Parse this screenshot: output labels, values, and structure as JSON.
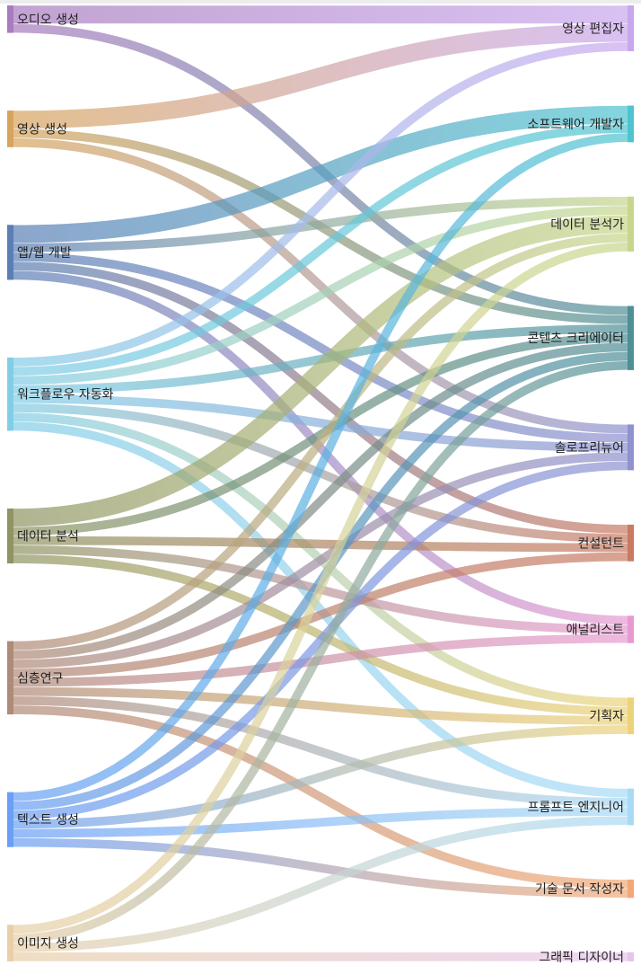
{
  "chart_data": {
    "type": "sankey",
    "sources": [
      {
        "name": "오디오 생성",
        "color": "#a87bbe"
      },
      {
        "name": "영상 생성",
        "color": "#d7a45d"
      },
      {
        "name": "앱/웹 개발",
        "color": "#5b7fb5"
      },
      {
        "name": "워크플로우 자동화",
        "color": "#82cde6"
      },
      {
        "name": "데이터 분석",
        "color": "#8f9462"
      },
      {
        "name": "심층연구",
        "color": "#b08a78"
      },
      {
        "name": "텍스트 생성",
        "color": "#6a9ff5"
      },
      {
        "name": "이미지 생성",
        "color": "#e8cfa8"
      }
    ],
    "targets": [
      {
        "name": "영상 편집자",
        "color": "#c9a7ee"
      },
      {
        "name": "소프트웨어 개발자",
        "color": "#4fc3cf"
      },
      {
        "name": "데이터 분석가",
        "color": "#c6d68c"
      },
      {
        "name": "콘텐츠 크리에이터",
        "color": "#4f8f96"
      },
      {
        "name": "솔로프리뉴어",
        "color": "#8e92cf"
      },
      {
        "name": "컨설턴트",
        "color": "#c97a62"
      },
      {
        "name": "애널리스트",
        "color": "#e79ad2"
      },
      {
        "name": "기획자",
        "color": "#ecd37a"
      },
      {
        "name": "프롬프트 엔지니어",
        "color": "#a9daf5"
      },
      {
        "name": "기술 문서 작성자",
        "color": "#f2a976"
      },
      {
        "name": "그래픽 디자이너",
        "color": "#e7c4ec"
      }
    ],
    "links": [
      {
        "source": "오디오 생성",
        "target": "영상 편집자",
        "value": 2
      },
      {
        "source": "오디오 생성",
        "target": "콘텐츠 크리에이터",
        "value": 1
      },
      {
        "source": "영상 생성",
        "target": "영상 편집자",
        "value": 2
      },
      {
        "source": "영상 생성",
        "target": "콘텐츠 크리에이터",
        "value": 1
      },
      {
        "source": "영상 생성",
        "target": "솔로프리뉴어",
        "value": 1
      },
      {
        "source": "앱/웹 개발",
        "target": "소프트웨어 개발자",
        "value": 2
      },
      {
        "source": "앱/웹 개발",
        "target": "데이터 분석가",
        "value": 1
      },
      {
        "source": "앱/웹 개발",
        "target": "솔로프리뉴어",
        "value": 1
      },
      {
        "source": "앱/웹 개발",
        "target": "컨설턴트",
        "value": 1
      },
      {
        "source": "앱/웹 개발",
        "target": "애널리스트",
        "value": 1
      },
      {
        "source": "워크플로우 자동화",
        "target": "영상 편집자",
        "value": 1
      },
      {
        "source": "워크플로우 자동화",
        "target": "소프트웨어 개발자",
        "value": 1
      },
      {
        "source": "워크플로우 자동화",
        "target": "데이터 분석가",
        "value": 1
      },
      {
        "source": "워크플로우 자동화",
        "target": "콘텐츠 크리에이터",
        "value": 1
      },
      {
        "source": "워크플로우 자동화",
        "target": "솔로프리뉴어",
        "value": 1
      },
      {
        "source": "워크플로우 자동화",
        "target": "컨설턴트",
        "value": 1
      },
      {
        "source": "워크플로우 자동화",
        "target": "기획자",
        "value": 1
      },
      {
        "source": "워크플로우 자동화",
        "target": "프롬프트 엔지니어",
        "value": 1
      },
      {
        "source": "데이터 분석",
        "target": "데이터 분석가",
        "value": 2
      },
      {
        "source": "데이터 분석",
        "target": "콘텐츠 크리에이터",
        "value": 1
      },
      {
        "source": "데이터 분석",
        "target": "컨설턴트",
        "value": 1
      },
      {
        "source": "데이터 분석",
        "target": "애널리스트",
        "value": 1
      },
      {
        "source": "데이터 분석",
        "target": "기획자",
        "value": 1
      },
      {
        "source": "심층연구",
        "target": "데이터 분석가",
        "value": 1
      },
      {
        "source": "심층연구",
        "target": "콘텐츠 크리에이터",
        "value": 1
      },
      {
        "source": "심층연구",
        "target": "솔로프리뉴어",
        "value": 1
      },
      {
        "source": "심층연구",
        "target": "컨설턴트",
        "value": 1
      },
      {
        "source": "심층연구",
        "target": "애널리스트",
        "value": 1
      },
      {
        "source": "심층연구",
        "target": "기획자",
        "value": 1
      },
      {
        "source": "심층연구",
        "target": "프롬프트 엔지니어",
        "value": 1
      },
      {
        "source": "심층연구",
        "target": "기술 문서 작성자",
        "value": 1
      },
      {
        "source": "텍스트 생성",
        "target": "소프트웨어 개발자",
        "value": 1
      },
      {
        "source": "텍스트 생성",
        "target": "콘텐츠 크리에이터",
        "value": 1
      },
      {
        "source": "텍스트 생성",
        "target": "솔로프리뉴어",
        "value": 1
      },
      {
        "source": "텍스트 생성",
        "target": "기획자",
        "value": 1
      },
      {
        "source": "텍스트 생성",
        "target": "프롬프트 엔지니어",
        "value": 1
      },
      {
        "source": "텍스트 생성",
        "target": "기술 문서 작성자",
        "value": 1
      },
      {
        "source": "이미지 생성",
        "target": "데이터 분석가",
        "value": 1
      },
      {
        "source": "이미지 생성",
        "target": "콘텐츠 크리에이터",
        "value": 1
      },
      {
        "source": "이미지 생성",
        "target": "프롬프트 엔지니어",
        "value": 1
      },
      {
        "source": "이미지 생성",
        "target": "그래픽 디자이너",
        "value": 1
      }
    ]
  }
}
